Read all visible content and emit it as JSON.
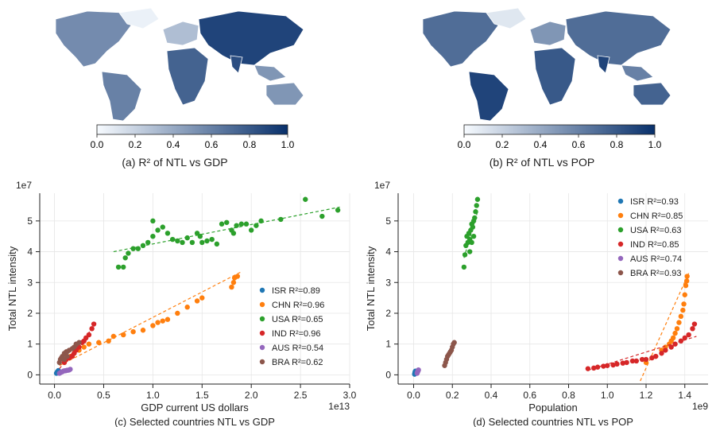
{
  "maps": [
    {
      "caption": "(a) R² of NTL vs GDP",
      "colorbar_ticks": [
        "0.0",
        "0.2",
        "0.4",
        "0.6",
        "0.8",
        "1.0"
      ],
      "colorbar_range": [
        0,
        1
      ],
      "colors": {
        "low": "#f7fbff",
        "high": "#08306b"
      }
    },
    {
      "caption": "(b) R² of NTL vs POP",
      "colorbar_ticks": [
        "0.0",
        "0.2",
        "0.4",
        "0.6",
        "0.8",
        "1.0"
      ],
      "colorbar_range": [
        0,
        1
      ],
      "colors": {
        "low": "#f7fbff",
        "high": "#08306b"
      }
    }
  ],
  "chart_data": [
    {
      "type": "scatter",
      "caption": "(c) Selected countries NTL vs GDP",
      "xlabel": "GDP current US dollars",
      "ylabel": "Total NTL intensity",
      "x_exponent": "1e13",
      "y_exponent": "1e7",
      "xlim": [
        -0.15,
        3.0
      ],
      "ylim": [
        -0.3,
        5.9
      ],
      "xticks": [
        "0.0",
        "0.5",
        "1.0",
        "1.5",
        "2.0",
        "2.5",
        "3.0"
      ],
      "yticks": [
        "0",
        "1",
        "2",
        "3",
        "4",
        "5"
      ],
      "grid": true,
      "legend_position": "lower-right",
      "series": [
        {
          "name": "ISR",
          "r2": "R²=0.89",
          "color": "#1f77b4",
          "points": [
            [
              0.02,
              0.05
            ],
            [
              0.025,
              0.08
            ],
            [
              0.03,
              0.1
            ],
            [
              0.035,
              0.12
            ],
            [
              0.04,
              0.14
            ],
            [
              0.03,
              0.07
            ]
          ],
          "fit": [
            [
              0.0,
              0.04
            ],
            [
              0.05,
              0.16
            ]
          ]
        },
        {
          "name": "CHN",
          "r2": "R²=0.96",
          "color": "#ff7f0e",
          "points": [
            [
              0.1,
              0.4
            ],
            [
              0.12,
              0.5
            ],
            [
              0.14,
              0.55
            ],
            [
              0.16,
              0.6
            ],
            [
              0.2,
              0.7
            ],
            [
              0.25,
              0.8
            ],
            [
              0.3,
              0.9
            ],
            [
              0.35,
              1.0
            ],
            [
              0.45,
              1.05
            ],
            [
              0.55,
              1.1
            ],
            [
              0.6,
              1.25
            ],
            [
              0.7,
              1.3
            ],
            [
              0.8,
              1.4
            ],
            [
              0.9,
              1.45
            ],
            [
              1.0,
              1.6
            ],
            [
              1.05,
              1.7
            ],
            [
              1.1,
              1.75
            ],
            [
              1.15,
              1.8
            ],
            [
              1.25,
              2.0
            ],
            [
              1.35,
              2.2
            ],
            [
              1.45,
              2.4
            ],
            [
              1.5,
              2.5
            ],
            [
              1.8,
              2.85
            ],
            [
              1.82,
              3.0
            ],
            [
              1.83,
              3.15
            ],
            [
              1.86,
              3.2
            ]
          ],
          "fit": [
            [
              0.05,
              0.3
            ],
            [
              1.9,
              3.35
            ]
          ]
        },
        {
          "name": "USA",
          "r2": "R²=0.65",
          "color": "#2ca02c",
          "points": [
            [
              0.65,
              3.5
            ],
            [
              0.7,
              3.5
            ],
            [
              0.72,
              3.8
            ],
            [
              0.75,
              3.95
            ],
            [
              0.8,
              4.1
            ],
            [
              0.85,
              4.1
            ],
            [
              0.9,
              4.2
            ],
            [
              0.95,
              4.3
            ],
            [
              1.0,
              4.5
            ],
            [
              1.0,
              5.0
            ],
            [
              1.05,
              4.7
            ],
            [
              1.1,
              4.8
            ],
            [
              1.15,
              4.6
            ],
            [
              1.2,
              4.4
            ],
            [
              1.25,
              4.35
            ],
            [
              1.3,
              4.3
            ],
            [
              1.35,
              4.45
            ],
            [
              1.4,
              4.3
            ],
            [
              1.45,
              4.6
            ],
            [
              1.48,
              4.5
            ],
            [
              1.5,
              4.3
            ],
            [
              1.55,
              4.35
            ],
            [
              1.6,
              4.4
            ],
            [
              1.65,
              4.25
            ],
            [
              1.7,
              4.9
            ],
            [
              1.75,
              4.95
            ],
            [
              1.8,
              4.7
            ],
            [
              1.82,
              4.6
            ],
            [
              1.85,
              4.85
            ],
            [
              1.9,
              4.9
            ],
            [
              1.95,
              4.9
            ],
            [
              2.0,
              4.7
            ],
            [
              2.05,
              4.85
            ],
            [
              2.1,
              5.0
            ],
            [
              2.3,
              5.05
            ],
            [
              2.55,
              5.7
            ],
            [
              2.72,
              5.15
            ],
            [
              2.88,
              5.35
            ]
          ],
          "fit": [
            [
              0.6,
              4.0
            ],
            [
              2.9,
              5.45
            ]
          ]
        },
        {
          "name": "IND",
          "r2": "R²=0.96",
          "color": "#d62728",
          "points": [
            [
              0.1,
              0.4
            ],
            [
              0.12,
              0.5
            ],
            [
              0.15,
              0.55
            ],
            [
              0.18,
              0.6
            ],
            [
              0.2,
              0.7
            ],
            [
              0.22,
              0.8
            ],
            [
              0.25,
              0.9
            ],
            [
              0.28,
              1.05
            ],
            [
              0.3,
              1.1
            ],
            [
              0.32,
              1.2
            ],
            [
              0.35,
              1.3
            ],
            [
              0.38,
              1.5
            ],
            [
              0.4,
              1.65
            ]
          ],
          "fit": [
            [
              0.05,
              0.2
            ],
            [
              0.42,
              1.65
            ]
          ]
        },
        {
          "name": "AUS",
          "r2": "R²=0.54",
          "color": "#9467bd",
          "points": [
            [
              0.05,
              0.05
            ],
            [
              0.06,
              0.07
            ],
            [
              0.07,
              0.09
            ],
            [
              0.08,
              0.1
            ],
            [
              0.09,
              0.12
            ],
            [
              0.1,
              0.13
            ],
            [
              0.11,
              0.13
            ],
            [
              0.12,
              0.14
            ],
            [
              0.13,
              0.15
            ],
            [
              0.14,
              0.15
            ],
            [
              0.15,
              0.16
            ],
            [
              0.16,
              0.18
            ]
          ],
          "fit": [
            [
              0.04,
              0.06
            ],
            [
              0.17,
              0.16
            ]
          ]
        },
        {
          "name": "BRA",
          "r2": "R²=0.62",
          "color": "#8c564b",
          "points": [
            [
              0.05,
              0.4
            ],
            [
              0.06,
              0.5
            ],
            [
              0.07,
              0.55
            ],
            [
              0.08,
              0.6
            ],
            [
              0.1,
              0.7
            ],
            [
              0.12,
              0.75
            ],
            [
              0.15,
              0.8
            ],
            [
              0.18,
              0.85
            ],
            [
              0.2,
              0.9
            ],
            [
              0.22,
              1.0
            ],
            [
              0.25,
              1.05
            ],
            [
              0.1,
              0.5
            ],
            [
              0.13,
              0.6
            ]
          ],
          "fit": [
            [
              0.04,
              0.45
            ],
            [
              0.26,
              1.0
            ]
          ]
        }
      ]
    },
    {
      "type": "scatter",
      "caption": "(d) Selected countries NTL vs POP",
      "xlabel": "Population",
      "ylabel": "Total NTL intensity",
      "x_exponent": "1e9",
      "y_exponent": "1e7",
      "xlim": [
        -0.08,
        1.52
      ],
      "ylim": [
        -0.3,
        5.9
      ],
      "xticks": [
        "0.0",
        "0.2",
        "0.4",
        "0.6",
        "0.8",
        "1.0",
        "1.2",
        "1.4"
      ],
      "yticks": [
        "0",
        "1",
        "2",
        "3",
        "4",
        "5"
      ],
      "grid": true,
      "legend_position": "top-right",
      "series": [
        {
          "name": "ISR",
          "r2": "R²=0.93",
          "color": "#1f77b4",
          "points": [
            [
              0.005,
              0.02
            ],
            [
              0.006,
              0.05
            ],
            [
              0.007,
              0.08
            ],
            [
              0.008,
              0.1
            ],
            [
              0.009,
              0.12
            ]
          ],
          "fit": [
            [
              0.004,
              0.0
            ],
            [
              0.01,
              0.14
            ]
          ]
        },
        {
          "name": "CHN",
          "r2": "R²=0.85",
          "color": "#ff7f0e",
          "points": [
            [
              1.2,
              0.4
            ],
            [
              1.25,
              0.6
            ],
            [
              1.28,
              0.8
            ],
            [
              1.3,
              0.9
            ],
            [
              1.32,
              1.0
            ],
            [
              1.33,
              1.1
            ],
            [
              1.34,
              1.2
            ],
            [
              1.35,
              1.35
            ],
            [
              1.36,
              1.5
            ],
            [
              1.37,
              1.7
            ],
            [
              1.38,
              1.9
            ],
            [
              1.39,
              2.1
            ],
            [
              1.395,
              2.3
            ],
            [
              1.4,
              2.6
            ],
            [
              1.405,
              2.9
            ],
            [
              1.41,
              3.05
            ],
            [
              1.412,
              3.2
            ]
          ],
          "fit": [
            [
              1.17,
              -0.2
            ],
            [
              1.42,
              3.3
            ]
          ]
        },
        {
          "name": "USA",
          "r2": "R²=0.63",
          "color": "#2ca02c",
          "points": [
            [
              0.26,
              3.5
            ],
            [
              0.265,
              3.9
            ],
            [
              0.27,
              4.2
            ],
            [
              0.275,
              4.5
            ],
            [
              0.28,
              4.3
            ],
            [
              0.285,
              4.6
            ],
            [
              0.29,
              4.4
            ],
            [
              0.295,
              4.7
            ],
            [
              0.3,
              4.9
            ],
            [
              0.305,
              4.8
            ],
            [
              0.31,
              5.0
            ],
            [
              0.315,
              5.1
            ],
            [
              0.32,
              5.3
            ],
            [
              0.325,
              5.5
            ],
            [
              0.33,
              5.7
            ],
            [
              0.3,
              4.3
            ],
            [
              0.29,
              4.0
            ],
            [
              0.31,
              4.5
            ]
          ],
          "fit": [
            [
              0.26,
              3.8
            ],
            [
              0.33,
              5.3
            ]
          ]
        },
        {
          "name": "IND",
          "r2": "R²=0.85",
          "color": "#d62728",
          "points": [
            [
              0.9,
              0.2
            ],
            [
              0.93,
              0.22
            ],
            [
              0.95,
              0.25
            ],
            [
              0.98,
              0.28
            ],
            [
              1.0,
              0.3
            ],
            [
              1.03,
              0.32
            ],
            [
              1.05,
              0.35
            ],
            [
              1.08,
              0.38
            ],
            [
              1.1,
              0.4
            ],
            [
              1.13,
              0.45
            ],
            [
              1.15,
              0.45
            ],
            [
              1.18,
              0.5
            ],
            [
              1.2,
              0.5
            ],
            [
              1.23,
              0.55
            ],
            [
              1.25,
              0.6
            ],
            [
              1.28,
              0.7
            ],
            [
              1.3,
              0.8
            ],
            [
              1.33,
              0.9
            ],
            [
              1.35,
              1.0
            ],
            [
              1.38,
              1.1
            ],
            [
              1.4,
              1.2
            ],
            [
              1.42,
              1.3
            ],
            [
              1.44,
              1.5
            ],
            [
              1.45,
              1.65
            ]
          ],
          "fit": [
            [
              0.9,
              0.15
            ],
            [
              1.46,
              1.25
            ]
          ]
        },
        {
          "name": "AUS",
          "r2": "R²=0.74",
          "color": "#9467bd",
          "points": [
            [
              0.018,
              0.05
            ],
            [
              0.019,
              0.07
            ],
            [
              0.02,
              0.09
            ],
            [
              0.021,
              0.1
            ],
            [
              0.022,
              0.12
            ],
            [
              0.023,
              0.13
            ],
            [
              0.024,
              0.15
            ],
            [
              0.025,
              0.16
            ]
          ],
          "fit": [
            [
              0.017,
              0.04
            ],
            [
              0.026,
              0.17
            ]
          ]
        },
        {
          "name": "BRA",
          "r2": "R²=0.93",
          "color": "#8c564b",
          "points": [
            [
              0.16,
              0.3
            ],
            [
              0.165,
              0.4
            ],
            [
              0.17,
              0.5
            ],
            [
              0.175,
              0.6
            ],
            [
              0.18,
              0.65
            ],
            [
              0.185,
              0.7
            ],
            [
              0.19,
              0.75
            ],
            [
              0.195,
              0.8
            ],
            [
              0.2,
              0.9
            ],
            [
              0.205,
              1.0
            ],
            [
              0.21,
              1.05
            ]
          ],
          "fit": [
            [
              0.16,
              0.3
            ],
            [
              0.21,
              1.05
            ]
          ]
        }
      ]
    }
  ]
}
